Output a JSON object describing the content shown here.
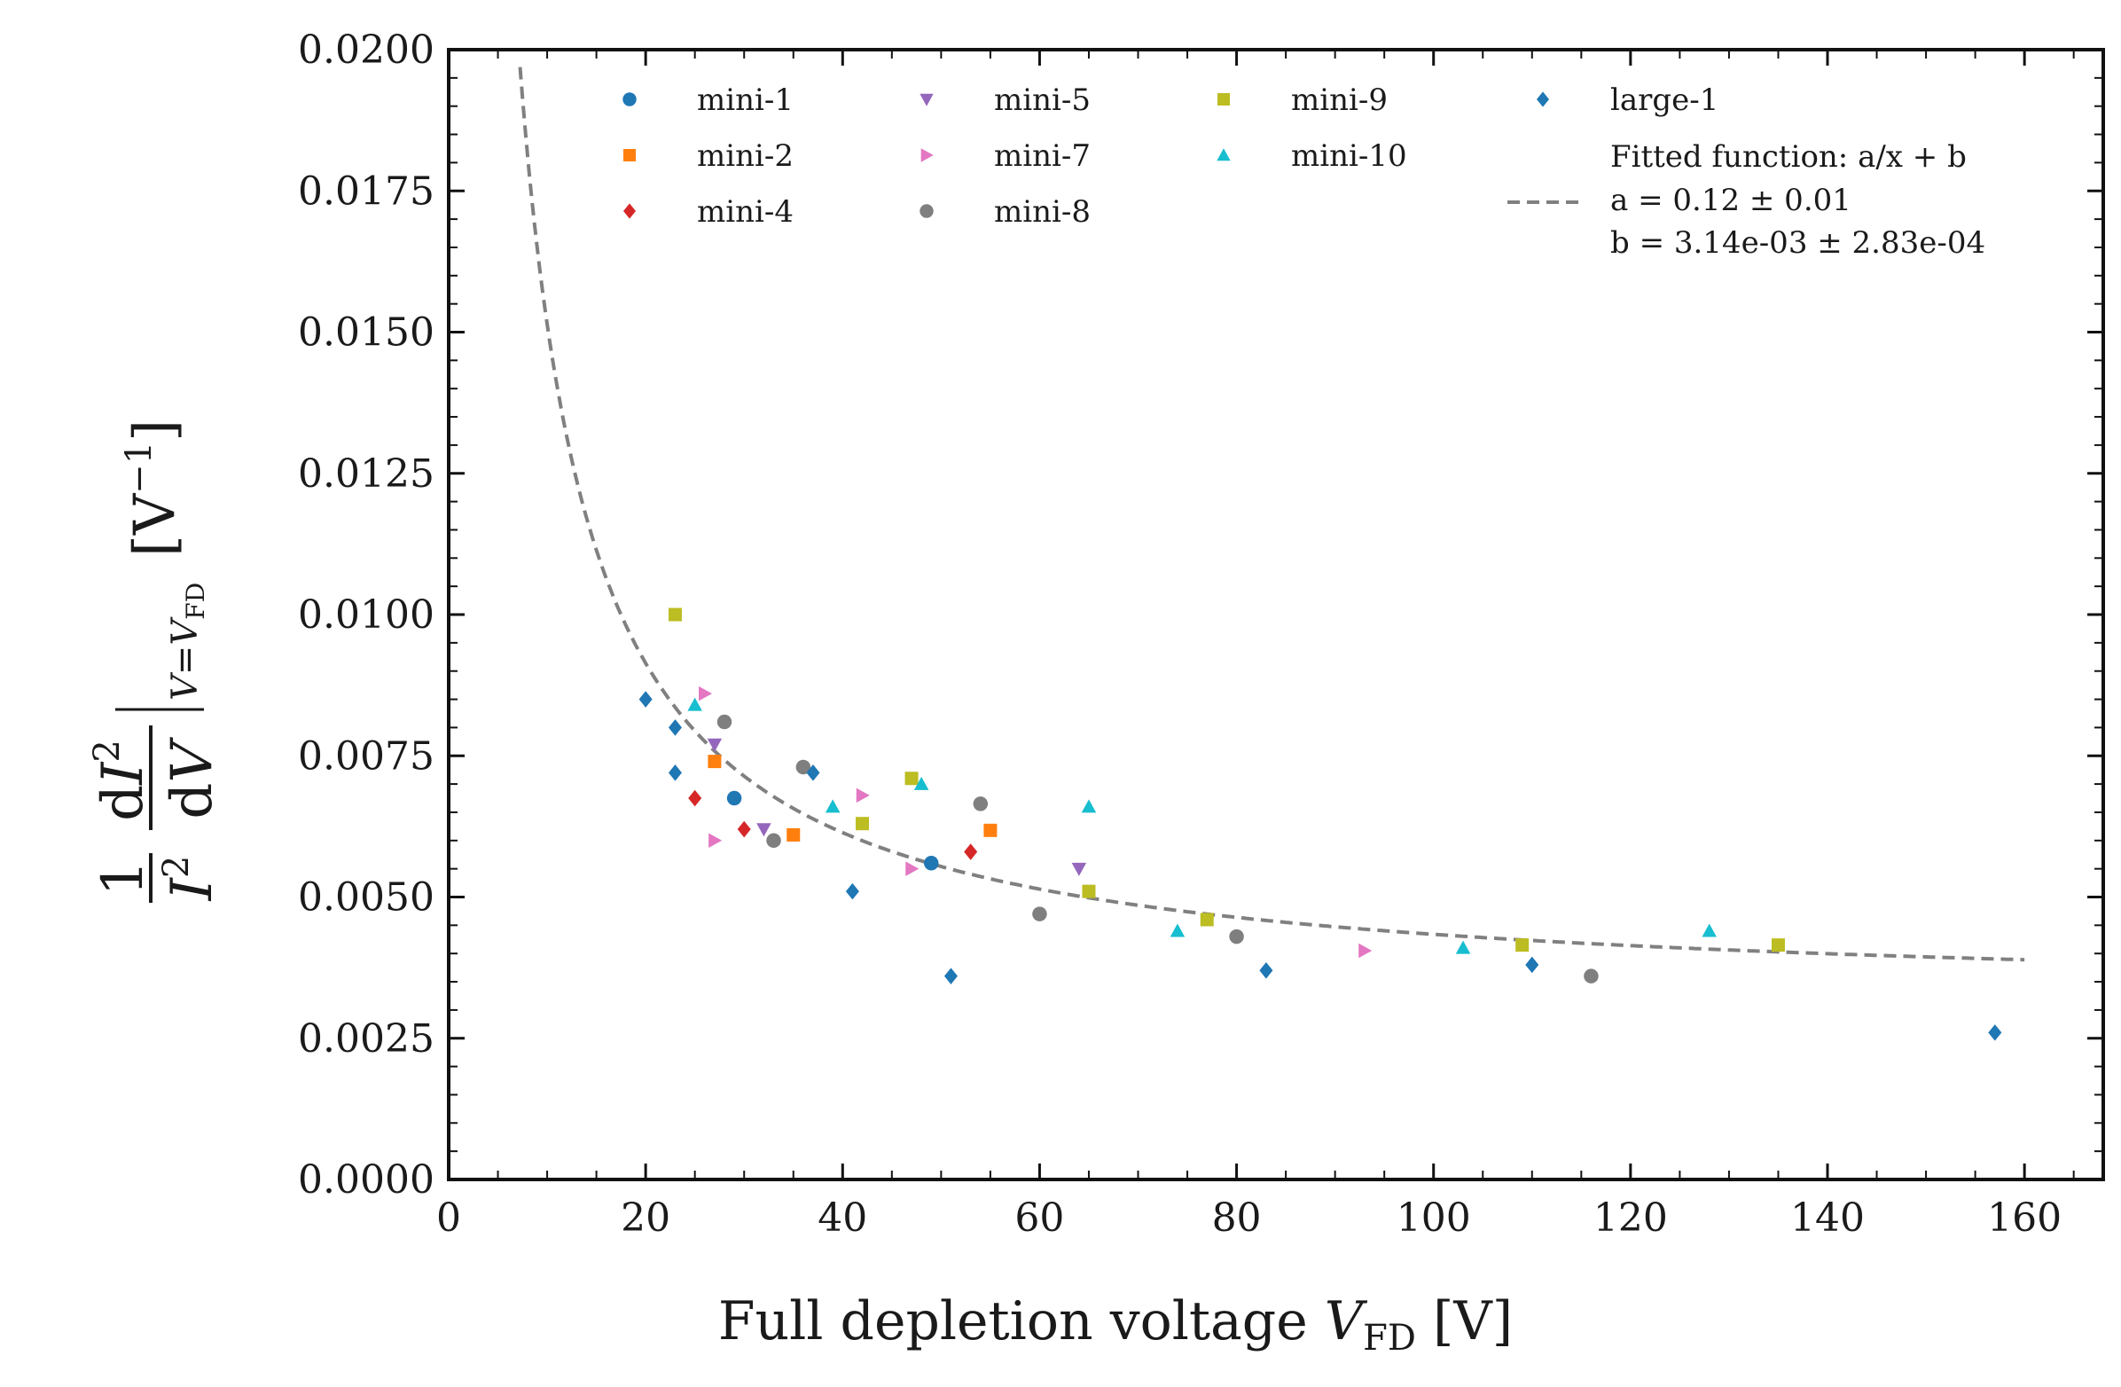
{
  "chart_data": {
    "type": "scatter",
    "xlabel": "Full depletion voltage V_FD [V]",
    "xlabel_main": "Full depletion voltage ",
    "xlabel_var": "V",
    "xlabel_sub": "FD",
    "xlabel_unit": " [V]",
    "ylabel": "1/I² dI²/dV |V=V_FD [V⁻¹]",
    "xlim": [
      0,
      168
    ],
    "ylim": [
      0.0,
      0.02
    ],
    "x_ticks": [
      0,
      20,
      40,
      60,
      80,
      100,
      120,
      140,
      160
    ],
    "x_tick_labels": [
      "0",
      "20",
      "40",
      "60",
      "80",
      "100",
      "120",
      "140",
      "160"
    ],
    "y_ticks": [
      0.0,
      0.0025,
      0.005,
      0.0075,
      0.01,
      0.0125,
      0.015,
      0.0175,
      0.02
    ],
    "y_tick_labels": [
      "0.0000",
      "0.0025",
      "0.0050",
      "0.0075",
      "0.0100",
      "0.0125",
      "0.0150",
      "0.0175",
      "0.0200"
    ],
    "legend_position": "top",
    "series": [
      {
        "name": "mini-1",
        "marker": "circle",
        "color": "#1f77b4",
        "points": [
          [
            29,
            0.00675
          ],
          [
            49,
            0.0056
          ]
        ]
      },
      {
        "name": "mini-2",
        "marker": "square",
        "color": "#ff7f0e",
        "points": [
          [
            27,
            0.0074
          ],
          [
            35,
            0.0061
          ],
          [
            55,
            0.00618
          ]
        ]
      },
      {
        "name": "mini-4",
        "marker": "diamond",
        "color": "#d62728",
        "points": [
          [
            25,
            0.00675
          ],
          [
            30,
            0.0062
          ],
          [
            53,
            0.0058
          ]
        ]
      },
      {
        "name": "mini-5",
        "marker": "triangle-down",
        "color": "#9467bd",
        "points": [
          [
            27,
            0.0077
          ],
          [
            32,
            0.0062
          ],
          [
            64,
            0.0055
          ]
        ]
      },
      {
        "name": "mini-7",
        "marker": "triangle-right",
        "color": "#e377c2",
        "points": [
          [
            26,
            0.0086
          ],
          [
            27,
            0.006
          ],
          [
            42,
            0.0068
          ],
          [
            47,
            0.0055
          ],
          [
            93,
            0.00405
          ]
        ]
      },
      {
        "name": "mini-8",
        "marker": "circle",
        "color": "#7f7f7f",
        "points": [
          [
            28,
            0.0081
          ],
          [
            33,
            0.006
          ],
          [
            36,
            0.0073
          ],
          [
            54,
            0.00665
          ],
          [
            60,
            0.0047
          ],
          [
            80,
            0.0043
          ],
          [
            116,
            0.0036
          ]
        ]
      },
      {
        "name": "mini-9",
        "marker": "square",
        "color": "#bcbd22",
        "points": [
          [
            23,
            0.01
          ],
          [
            42,
            0.0063
          ],
          [
            47,
            0.0071
          ],
          [
            65,
            0.0051
          ],
          [
            77,
            0.0046
          ],
          [
            109,
            0.00415
          ],
          [
            135,
            0.00415
          ]
        ]
      },
      {
        "name": "mini-10",
        "marker": "triangle-up",
        "color": "#17becf",
        "points": [
          [
            25,
            0.0084
          ],
          [
            39,
            0.0066
          ],
          [
            48,
            0.007
          ],
          [
            65,
            0.0066
          ],
          [
            74,
            0.0044
          ],
          [
            103,
            0.0041
          ],
          [
            128,
            0.0044
          ]
        ]
      },
      {
        "name": "large-1",
        "marker": "diamond",
        "color": "#1f77b4",
        "points": [
          [
            20,
            0.0085
          ],
          [
            23,
            0.008
          ],
          [
            23,
            0.0072
          ],
          [
            37,
            0.0072
          ],
          [
            41,
            0.0051
          ],
          [
            51,
            0.0036
          ],
          [
            83,
            0.0037
          ],
          [
            110,
            0.0038
          ],
          [
            157,
            0.0026
          ]
        ]
      }
    ],
    "fit": {
      "name": "Fitted function: a/x + b",
      "a_label": "a = 0.12 ± 0.01",
      "b_label": "b = 3.14e-03 ± 2.83e-04",
      "a": 0.12,
      "b": 0.00314,
      "x_range": [
        5,
        160
      ],
      "color": "#808080",
      "style": "dashed"
    }
  }
}
